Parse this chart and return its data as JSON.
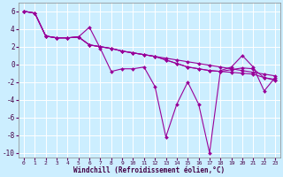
{
  "bg_color": "#cceeff",
  "line_color": "#990099",
  "grid_color": "#ffffff",
  "xlabel": "Windchill (Refroidissement éolien,°C)",
  "xlim": [
    -0.5,
    23.5
  ],
  "ylim": [
    -10.5,
    7
  ],
  "xticks": [
    0,
    1,
    2,
    3,
    4,
    5,
    6,
    7,
    8,
    9,
    10,
    11,
    12,
    13,
    14,
    15,
    16,
    17,
    18,
    19,
    20,
    21,
    22,
    23
  ],
  "yticks": [
    -10,
    -8,
    -6,
    -4,
    -2,
    0,
    2,
    4,
    6
  ],
  "curves": [
    {
      "x": [
        0,
        1,
        2,
        3,
        4,
        5,
        6,
        7,
        8,
        9,
        10,
        11,
        12,
        13,
        14,
        15,
        16,
        17,
        18,
        19,
        20,
        21,
        22,
        23
      ],
      "y": [
        6,
        5.8,
        3.2,
        3.0,
        3.0,
        3.1,
        4.2,
        1.8,
        -0.8,
        -0.5,
        -0.5,
        -0.3,
        -2.5,
        -8.2,
        -4.5,
        -2.0,
        -4.5,
        -10.0,
        -0.7,
        -0.3,
        1.0,
        -0.3,
        -3.0,
        -1.5
      ]
    },
    {
      "x": [
        0,
        1,
        2,
        3,
        4,
        5,
        6,
        7,
        8,
        9,
        10,
        11,
        12,
        13,
        14,
        15,
        16,
        17,
        18,
        19,
        20,
        21,
        22,
        23
      ],
      "y": [
        6,
        5.8,
        3.2,
        3.0,
        3.0,
        3.1,
        2.2,
        2.0,
        1.8,
        1.5,
        1.3,
        1.1,
        0.9,
        0.7,
        0.5,
        0.3,
        0.1,
        -0.1,
        -0.3,
        -0.5,
        -0.7,
        -0.9,
        -1.1,
        -1.3
      ]
    },
    {
      "x": [
        0,
        1,
        2,
        3,
        4,
        5,
        6,
        7,
        8,
        9,
        10,
        11,
        12,
        13,
        14,
        15,
        16,
        17,
        18,
        19,
        20,
        21,
        22,
        23
      ],
      "y": [
        6,
        5.8,
        3.2,
        3.0,
        3.0,
        3.1,
        2.2,
        2.0,
        1.8,
        1.5,
        1.3,
        1.1,
        0.9,
        0.5,
        0.1,
        -0.3,
        -0.5,
        -0.7,
        -0.8,
        -0.9,
        -1.0,
        -1.1,
        -1.5,
        -1.7
      ]
    },
    {
      "x": [
        0,
        1,
        2,
        3,
        4,
        5,
        6,
        7,
        8,
        9,
        10,
        11,
        12,
        13,
        14,
        15,
        16,
        17,
        18,
        19,
        20,
        21,
        22,
        23
      ],
      "y": [
        6,
        5.8,
        3.2,
        3.0,
        3.0,
        3.1,
        2.2,
        2.0,
        1.8,
        1.5,
        1.3,
        1.1,
        0.9,
        0.5,
        0.1,
        -0.3,
        -0.5,
        -0.7,
        -0.8,
        -0.6,
        -0.4,
        -0.5,
        -1.5,
        -1.8
      ]
    }
  ],
  "marker": "D",
  "markersize": 2.0
}
